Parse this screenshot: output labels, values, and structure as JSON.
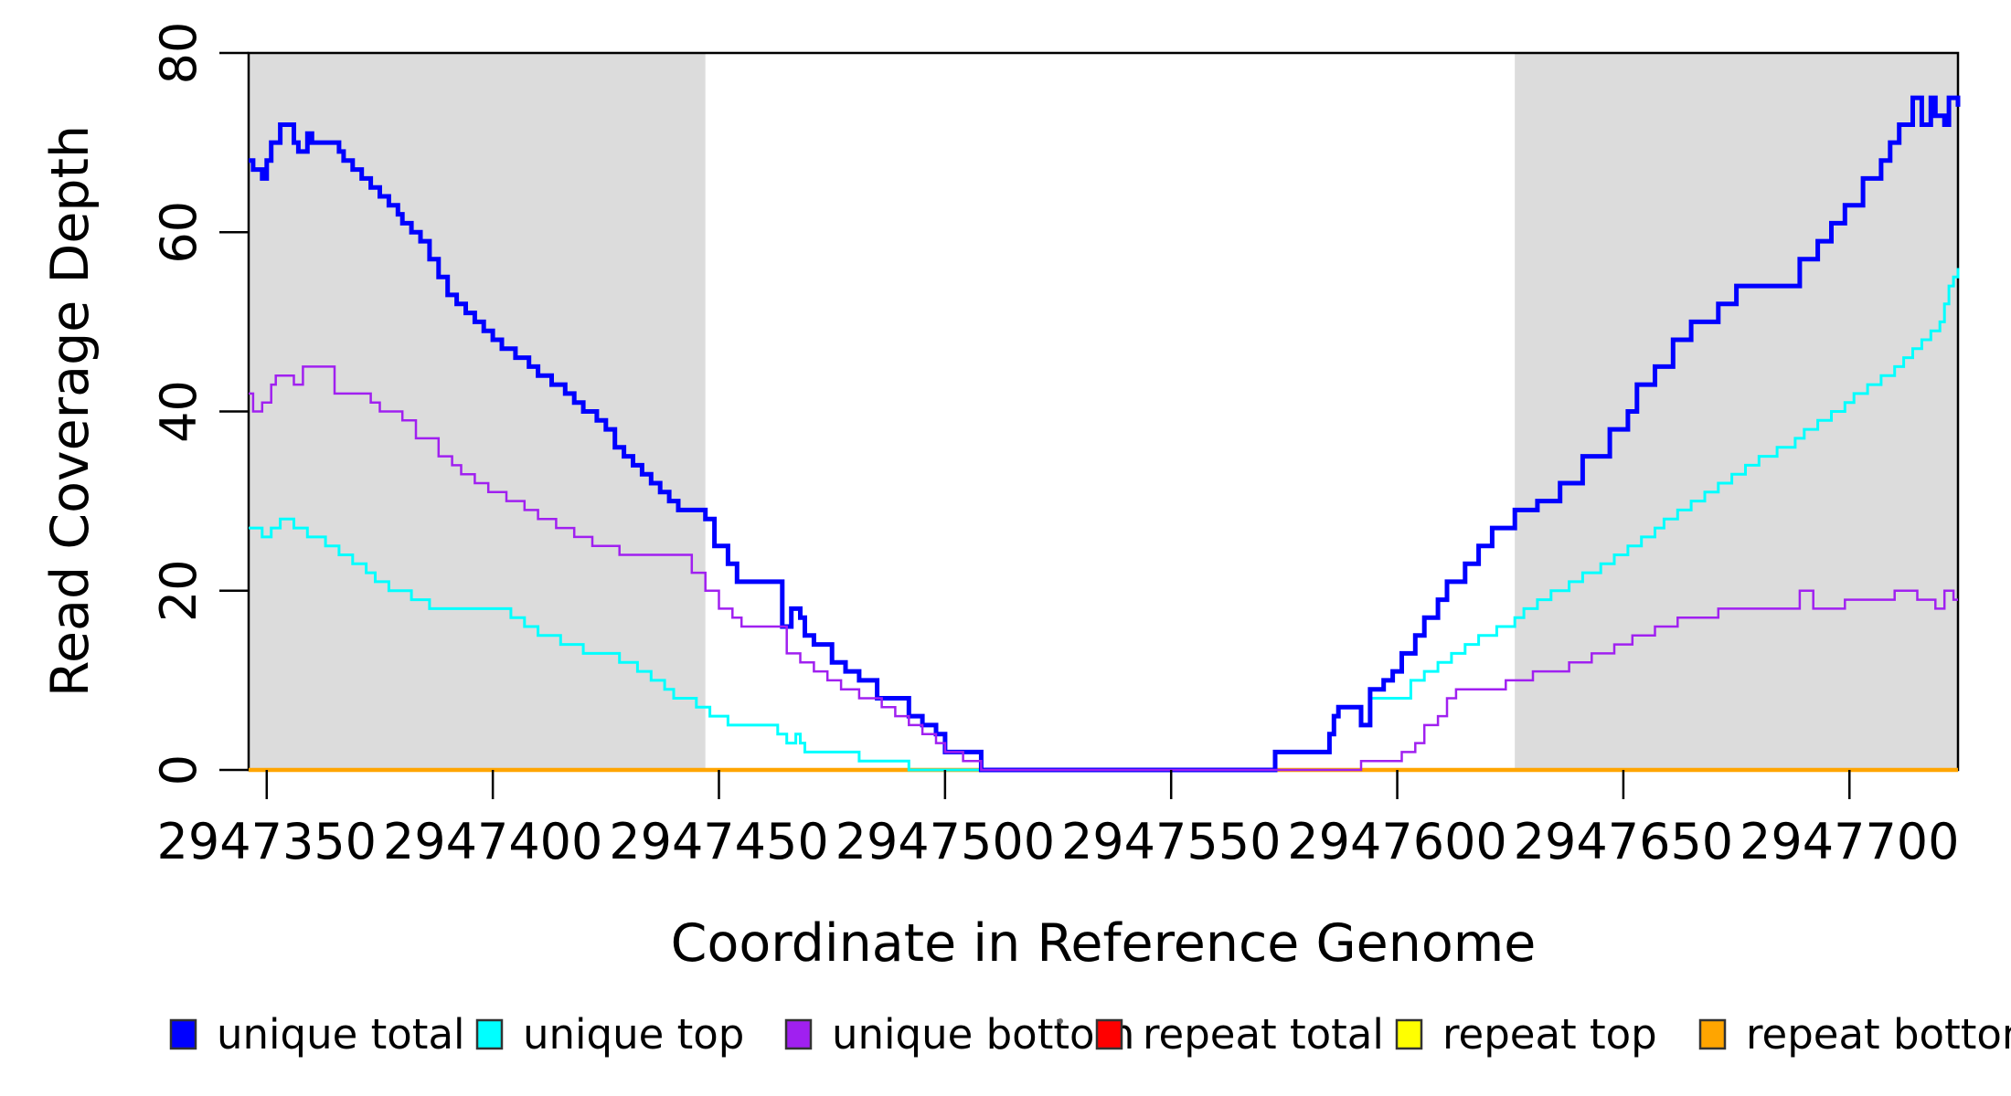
{
  "chart_data": {
    "type": "line",
    "subtype": "step-coverage-plot",
    "title": "",
    "xlabel": "Coordinate in Reference Genome",
    "ylabel": "Read Coverage Depth",
    "xlim": [
      2947346,
      2947724
    ],
    "ylim": [
      0,
      80
    ],
    "x_ticks": [
      2947350,
      2947400,
      2947450,
      2947500,
      2947550,
      2947600,
      2947650,
      2947700
    ],
    "y_ticks": [
      0,
      20,
      40,
      60,
      80
    ],
    "grid": false,
    "legend_position": "bottom",
    "shaded_band_color": "#DCDCDC",
    "shaded_regions": [
      {
        "x0": 2947346,
        "x1": 2947447
      },
      {
        "x0": 2947626,
        "x1": 2947724
      }
    ],
    "series": [
      {
        "name": "repeat total",
        "color": "#FF0000",
        "width": 3,
        "points": [
          [
            2947346,
            0
          ],
          [
            2947724,
            0
          ]
        ]
      },
      {
        "name": "repeat top",
        "color": "#FFFF00",
        "width": 3,
        "points": [
          [
            2947346,
            0
          ],
          [
            2947724,
            0
          ]
        ]
      },
      {
        "name": "repeat bottom",
        "color": "#FFA500",
        "width": 4.5,
        "points": [
          [
            2947346,
            0
          ],
          [
            2947724,
            0
          ]
        ]
      },
      {
        "name": "unique top",
        "color": "#00FFFF",
        "width": 3,
        "points": [
          [
            2947346,
            27
          ],
          [
            2947349,
            26
          ],
          [
            2947351,
            27
          ],
          [
            2947353,
            28
          ],
          [
            2947356,
            27
          ],
          [
            2947359,
            26
          ],
          [
            2947363,
            25
          ],
          [
            2947366,
            24
          ],
          [
            2947369,
            23
          ],
          [
            2947372,
            22
          ],
          [
            2947374,
            21
          ],
          [
            2947377,
            20
          ],
          [
            2947382,
            19
          ],
          [
            2947386,
            18
          ],
          [
            2947404,
            17
          ],
          [
            2947407,
            16
          ],
          [
            2947410,
            15
          ],
          [
            2947415,
            14
          ],
          [
            2947420,
            13
          ],
          [
            2947428,
            12
          ],
          [
            2947432,
            11
          ],
          [
            2947435,
            10
          ],
          [
            2947438,
            9
          ],
          [
            2947440,
            8
          ],
          [
            2947445,
            7
          ],
          [
            2947448,
            6
          ],
          [
            2947452,
            5
          ],
          [
            2947463,
            4
          ],
          [
            2947465,
            3
          ],
          [
            2947467,
            4
          ],
          [
            2947468,
            3
          ],
          [
            2947469,
            2
          ],
          [
            2947481,
            1
          ],
          [
            2947492,
            0
          ],
          [
            2947573,
            2
          ],
          [
            2947585,
            4
          ],
          [
            2947586,
            6
          ],
          [
            2947587,
            7
          ],
          [
            2947592,
            5
          ],
          [
            2947594,
            8
          ],
          [
            2947603,
            10
          ],
          [
            2947606,
            11
          ],
          [
            2947609,
            12
          ],
          [
            2947612,
            13
          ],
          [
            2947615,
            14
          ],
          [
            2947618,
            15
          ],
          [
            2947622,
            16
          ],
          [
            2947626,
            17
          ],
          [
            2947628,
            18
          ],
          [
            2947631,
            19
          ],
          [
            2947634,
            20
          ],
          [
            2947638,
            21
          ],
          [
            2947641,
            22
          ],
          [
            2947645,
            23
          ],
          [
            2947648,
            24
          ],
          [
            2947651,
            25
          ],
          [
            2947654,
            26
          ],
          [
            2947657,
            27
          ],
          [
            2947659,
            28
          ],
          [
            2947662,
            29
          ],
          [
            2947665,
            30
          ],
          [
            2947668,
            31
          ],
          [
            2947671,
            32
          ],
          [
            2947674,
            33
          ],
          [
            2947677,
            34
          ],
          [
            2947680,
            35
          ],
          [
            2947684,
            36
          ],
          [
            2947688,
            37
          ],
          [
            2947690,
            38
          ],
          [
            2947693,
            39
          ],
          [
            2947696,
            40
          ],
          [
            2947699,
            41
          ],
          [
            2947701,
            42
          ],
          [
            2947704,
            43
          ],
          [
            2947707,
            44
          ],
          [
            2947710,
            45
          ],
          [
            2947712,
            46
          ],
          [
            2947714,
            47
          ],
          [
            2947716,
            48
          ],
          [
            2947718,
            49
          ],
          [
            2947720,
            50
          ],
          [
            2947721,
            52
          ],
          [
            2947722,
            54
          ],
          [
            2947723,
            55
          ],
          [
            2947724,
            56
          ]
        ]
      },
      {
        "name": "unique total",
        "color": "#0000FF",
        "width": 5,
        "points": [
          [
            2947346,
            68
          ],
          [
            2947347,
            67
          ],
          [
            2947349,
            66
          ],
          [
            2947350,
            68
          ],
          [
            2947351,
            70
          ],
          [
            2947353,
            72
          ],
          [
            2947356,
            70
          ],
          [
            2947357,
            69
          ],
          [
            2947359,
            71
          ],
          [
            2947360,
            70
          ],
          [
            2947366,
            69
          ],
          [
            2947367,
            68
          ],
          [
            2947369,
            67
          ],
          [
            2947371,
            66
          ],
          [
            2947373,
            65
          ],
          [
            2947375,
            64
          ],
          [
            2947377,
            63
          ],
          [
            2947379,
            62
          ],
          [
            2947380,
            61
          ],
          [
            2947382,
            60
          ],
          [
            2947384,
            59
          ],
          [
            2947386,
            57
          ],
          [
            2947388,
            55
          ],
          [
            2947390,
            53
          ],
          [
            2947392,
            52
          ],
          [
            2947394,
            51
          ],
          [
            2947396,
            50
          ],
          [
            2947398,
            49
          ],
          [
            2947400,
            48
          ],
          [
            2947402,
            47
          ],
          [
            2947405,
            46
          ],
          [
            2947408,
            45
          ],
          [
            2947410,
            44
          ],
          [
            2947413,
            43
          ],
          [
            2947416,
            42
          ],
          [
            2947418,
            41
          ],
          [
            2947420,
            40
          ],
          [
            2947423,
            39
          ],
          [
            2947425,
            38
          ],
          [
            2947427,
            36
          ],
          [
            2947429,
            35
          ],
          [
            2947431,
            34
          ],
          [
            2947433,
            33
          ],
          [
            2947435,
            32
          ],
          [
            2947437,
            31
          ],
          [
            2947439,
            30
          ],
          [
            2947441,
            29
          ],
          [
            2947447,
            28
          ],
          [
            2947449,
            25
          ],
          [
            2947452,
            23
          ],
          [
            2947454,
            21
          ],
          [
            2947464,
            16
          ],
          [
            2947466,
            18
          ],
          [
            2947468,
            17
          ],
          [
            2947469,
            15
          ],
          [
            2947471,
            14
          ],
          [
            2947475,
            12
          ],
          [
            2947478,
            11
          ],
          [
            2947481,
            10
          ],
          [
            2947485,
            8
          ],
          [
            2947492,
            6
          ],
          [
            2947495,
            5
          ],
          [
            2947498,
            4
          ],
          [
            2947500,
            2
          ],
          [
            2947508,
            0
          ],
          [
            2947573,
            2
          ],
          [
            2947585,
            4
          ],
          [
            2947586,
            6
          ],
          [
            2947587,
            7
          ],
          [
            2947592,
            5
          ],
          [
            2947594,
            9
          ],
          [
            2947597,
            10
          ],
          [
            2947599,
            11
          ],
          [
            2947601,
            13
          ],
          [
            2947604,
            15
          ],
          [
            2947606,
            17
          ],
          [
            2947609,
            19
          ],
          [
            2947611,
            21
          ],
          [
            2947615,
            23
          ],
          [
            2947618,
            25
          ],
          [
            2947621,
            27
          ],
          [
            2947626,
            29
          ],
          [
            2947631,
            30
          ],
          [
            2947636,
            32
          ],
          [
            2947641,
            35
          ],
          [
            2947647,
            38
          ],
          [
            2947651,
            40
          ],
          [
            2947653,
            43
          ],
          [
            2947657,
            45
          ],
          [
            2947661,
            48
          ],
          [
            2947665,
            50
          ],
          [
            2947671,
            52
          ],
          [
            2947675,
            54
          ],
          [
            2947689,
            57
          ],
          [
            2947693,
            59
          ],
          [
            2947696,
            61
          ],
          [
            2947699,
            63
          ],
          [
            2947703,
            66
          ],
          [
            2947707,
            68
          ],
          [
            2947709,
            70
          ],
          [
            2947711,
            72
          ],
          [
            2947714,
            75
          ],
          [
            2947716,
            72
          ],
          [
            2947718,
            75
          ],
          [
            2947719,
            73
          ],
          [
            2947721,
            72
          ],
          [
            2947722,
            75
          ],
          [
            2947724,
            74
          ]
        ]
      },
      {
        "name": "unique bottom",
        "color": "#A020F0",
        "width": 2.5,
        "points": [
          [
            2947346,
            42
          ],
          [
            2947347,
            40
          ],
          [
            2947349,
            41
          ],
          [
            2947351,
            43
          ],
          [
            2947352,
            44
          ],
          [
            2947356,
            43
          ],
          [
            2947358,
            45
          ],
          [
            2947365,
            42
          ],
          [
            2947373,
            41
          ],
          [
            2947375,
            40
          ],
          [
            2947380,
            39
          ],
          [
            2947383,
            37
          ],
          [
            2947388,
            35
          ],
          [
            2947391,
            34
          ],
          [
            2947393,
            33
          ],
          [
            2947396,
            32
          ],
          [
            2947399,
            31
          ],
          [
            2947403,
            30
          ],
          [
            2947407,
            29
          ],
          [
            2947410,
            28
          ],
          [
            2947414,
            27
          ],
          [
            2947418,
            26
          ],
          [
            2947422,
            25
          ],
          [
            2947428,
            24
          ],
          [
            2947444,
            22
          ],
          [
            2947447,
            20
          ],
          [
            2947450,
            18
          ],
          [
            2947453,
            17
          ],
          [
            2947455,
            16
          ],
          [
            2947465,
            13
          ],
          [
            2947468,
            12
          ],
          [
            2947471,
            11
          ],
          [
            2947474,
            10
          ],
          [
            2947477,
            9
          ],
          [
            2947481,
            8
          ],
          [
            2947486,
            7
          ],
          [
            2947489,
            6
          ],
          [
            2947492,
            5
          ],
          [
            2947495,
            4
          ],
          [
            2947498,
            3
          ],
          [
            2947500,
            2
          ],
          [
            2947504,
            1
          ],
          [
            2947508,
            0
          ],
          [
            2947592,
            1
          ],
          [
            2947601,
            2
          ],
          [
            2947604,
            3
          ],
          [
            2947606,
            5
          ],
          [
            2947609,
            6
          ],
          [
            2947611,
            8
          ],
          [
            2947613,
            9
          ],
          [
            2947624,
            10
          ],
          [
            2947630,
            11
          ],
          [
            2947638,
            12
          ],
          [
            2947643,
            13
          ],
          [
            2947648,
            14
          ],
          [
            2947652,
            15
          ],
          [
            2947657,
            16
          ],
          [
            2947662,
            17
          ],
          [
            2947671,
            18
          ],
          [
            2947689,
            20
          ],
          [
            2947692,
            18
          ],
          [
            2947699,
            19
          ],
          [
            2947710,
            20
          ],
          [
            2947715,
            19
          ],
          [
            2947719,
            18
          ],
          [
            2947721,
            20
          ],
          [
            2947723,
            19
          ]
        ]
      }
    ],
    "legend": [
      {
        "label": "unique total",
        "color": "#0000FF"
      },
      {
        "label": "unique top",
        "color": "#00FFFF"
      },
      {
        "label": "unique bottom",
        "color": "#A020F0"
      },
      {
        "label": "repeat total",
        "color": "#FF0000"
      },
      {
        "label": "repeat top",
        "color": "#FFFF00"
      },
      {
        "label": "repeat bottom",
        "color": "#FFA500"
      }
    ],
    "axis_color": "#000000",
    "tick_label_font_px": 54,
    "axis_title_font_px": 57,
    "legend_font_px": 45
  }
}
